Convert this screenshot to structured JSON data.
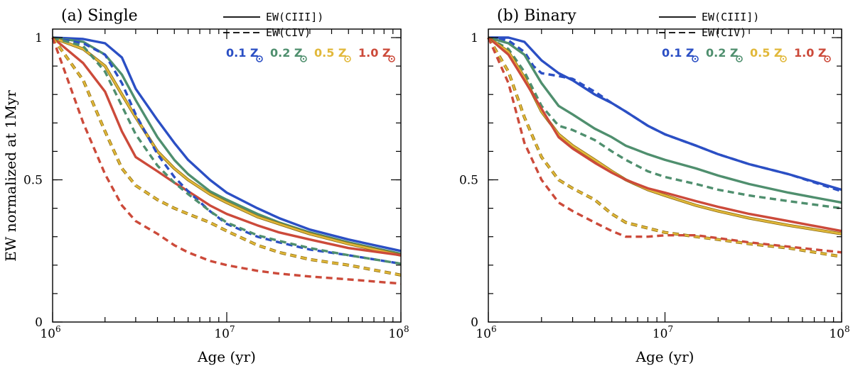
{
  "ylabel": "EW normalized at 1Myr",
  "colors": {
    "blue": "#2b4fc4",
    "green": "#4f8f6e",
    "yellow": "#e1b83a",
    "red": "#cc4a3a"
  },
  "chart_data": [
    {
      "type": "line",
      "title": "(a) Single",
      "xlabel": "Age (yr)",
      "ylabel": "EW normalized at 1Myr",
      "x_scale": "log",
      "xlim": [
        1000000,
        100000000
      ],
      "ylim": [
        0,
        1.03
      ],
      "x_ticks": [
        {
          "value": 1000000,
          "base": "10",
          "exp": "6"
        },
        {
          "value": 10000000,
          "base": "10",
          "exp": "7"
        },
        {
          "value": 100000000,
          "base": "10",
          "exp": "8"
        }
      ],
      "y_ticks": [
        {
          "value": 0,
          "label": "0"
        },
        {
          "value": 0.5,
          "label": "0.5"
        },
        {
          "value": 1,
          "label": "1"
        }
      ],
      "legend": {
        "position": "top-right",
        "line_entries": [
          {
            "style": "solid",
            "label": "EW(CIII])"
          },
          {
            "style": "dashed",
            "label": "EW(CIV)"
          }
        ],
        "metallicities": [
          {
            "label": "0.1 Z",
            "color": "blue"
          },
          {
            "label": "0.2 Z",
            "color": "green"
          },
          {
            "label": "0.5 Z",
            "color": "yellow"
          },
          {
            "label": "1.0 Z",
            "color": "red"
          }
        ]
      },
      "series": [
        {
          "name": "0.1 Z EW(CIII])",
          "color": "blue",
          "dash": false,
          "x": [
            1000000,
            1500000,
            2000000,
            2500000,
            3000000,
            4000000,
            5000000,
            6000000,
            8000000,
            10000000,
            15000000,
            20000000,
            30000000,
            50000000,
            100000000
          ],
          "y": [
            1.0,
            0.995,
            0.98,
            0.93,
            0.82,
            0.71,
            0.63,
            0.57,
            0.5,
            0.455,
            0.4,
            0.365,
            0.325,
            0.29,
            0.25
          ]
        },
        {
          "name": "0.2 Z EW(CIII])",
          "color": "green",
          "dash": false,
          "x": [
            1000000,
            1500000,
            2000000,
            2500000,
            3000000,
            4000000,
            5000000,
            6000000,
            8000000,
            10000000,
            15000000,
            20000000,
            30000000,
            50000000,
            100000000
          ],
          "y": [
            1.0,
            0.985,
            0.94,
            0.87,
            0.78,
            0.65,
            0.57,
            0.52,
            0.46,
            0.43,
            0.38,
            0.35,
            0.315,
            0.28,
            0.24
          ]
        },
        {
          "name": "0.5 Z EW(CIII])",
          "color": "yellow",
          "dash": false,
          "x": [
            1000000,
            1500000,
            2000000,
            2500000,
            3000000,
            4000000,
            5000000,
            6000000,
            8000000,
            10000000,
            15000000,
            20000000,
            30000000,
            50000000,
            100000000
          ],
          "y": [
            1.0,
            0.96,
            0.9,
            0.8,
            0.72,
            0.6,
            0.54,
            0.5,
            0.45,
            0.42,
            0.37,
            0.345,
            0.31,
            0.275,
            0.235
          ]
        },
        {
          "name": "1.0 Z EW(CIII])",
          "color": "red",
          "dash": false,
          "x": [
            1000000,
            1500000,
            2000000,
            2500000,
            3000000,
            4000000,
            5000000,
            6000000,
            8000000,
            10000000,
            15000000,
            20000000,
            30000000,
            50000000,
            100000000
          ],
          "y": [
            1.0,
            0.91,
            0.81,
            0.67,
            0.58,
            0.53,
            0.49,
            0.46,
            0.41,
            0.38,
            0.34,
            0.315,
            0.29,
            0.26,
            0.235
          ]
        },
        {
          "name": "0.1 Z EW(CIV)",
          "color": "blue",
          "dash": true,
          "x": [
            1000000,
            1500000,
            2000000,
            2500000,
            3000000,
            4000000,
            5000000,
            6000000,
            8000000,
            10000000,
            15000000,
            20000000,
            30000000,
            50000000,
            100000000
          ],
          "y": [
            1.0,
            0.98,
            0.94,
            0.84,
            0.73,
            0.59,
            0.51,
            0.46,
            0.39,
            0.345,
            0.3,
            0.28,
            0.255,
            0.235,
            0.205
          ]
        },
        {
          "name": "0.2 Z EW(CIV)",
          "color": "green",
          "dash": true,
          "x": [
            1000000,
            1500000,
            2000000,
            2500000,
            3000000,
            4000000,
            5000000,
            6000000,
            8000000,
            10000000,
            15000000,
            20000000,
            30000000,
            50000000,
            100000000
          ],
          "y": [
            1.0,
            0.97,
            0.88,
            0.76,
            0.66,
            0.55,
            0.49,
            0.45,
            0.39,
            0.35,
            0.305,
            0.285,
            0.26,
            0.235,
            0.205
          ]
        },
        {
          "name": "0.5 Z EW(CIV)",
          "color": "yellow",
          "dash": true,
          "x": [
            1000000,
            1500000,
            2000000,
            2500000,
            3000000,
            4000000,
            5000000,
            6000000,
            8000000,
            10000000,
            15000000,
            20000000,
            30000000,
            50000000,
            100000000
          ],
          "y": [
            1.0,
            0.85,
            0.67,
            0.54,
            0.48,
            0.43,
            0.4,
            0.38,
            0.35,
            0.32,
            0.27,
            0.245,
            0.22,
            0.2,
            0.165
          ]
        },
        {
          "name": "1.0 Z EW(CIV)",
          "color": "red",
          "dash": true,
          "x": [
            1000000,
            1500000,
            2000000,
            2500000,
            3000000,
            4000000,
            5000000,
            6000000,
            8000000,
            10000000,
            15000000,
            20000000,
            30000000,
            50000000,
            100000000
          ],
          "y": [
            1.0,
            0.7,
            0.52,
            0.41,
            0.355,
            0.31,
            0.27,
            0.245,
            0.215,
            0.2,
            0.18,
            0.17,
            0.16,
            0.15,
            0.135
          ]
        }
      ]
    },
    {
      "type": "line",
      "title": "(b) Binary",
      "xlabel": "Age (yr)",
      "ylabel": "",
      "x_scale": "log",
      "xlim": [
        1000000,
        100000000
      ],
      "ylim": [
        0,
        1.03
      ],
      "x_ticks": [
        {
          "value": 1000000,
          "base": "10",
          "exp": "6"
        },
        {
          "value": 10000000,
          "base": "10",
          "exp": "7"
        },
        {
          "value": 100000000,
          "base": "10",
          "exp": "8"
        }
      ],
      "y_ticks": [
        {
          "value": 0,
          "label": "0"
        },
        {
          "value": 0.5,
          "label": "0.5"
        },
        {
          "value": 1,
          "label": "1"
        }
      ],
      "legend": {
        "position": "top-right",
        "line_entries": [
          {
            "style": "solid",
            "label": "EW(CIII])"
          },
          {
            "style": "dashed",
            "label": "EW(CIV)"
          }
        ],
        "metallicities": [
          {
            "label": "0.1 Z",
            "color": "blue"
          },
          {
            "label": "0.2 Z",
            "color": "green"
          },
          {
            "label": "0.5 Z",
            "color": "yellow"
          },
          {
            "label": "1.0 Z",
            "color": "red"
          }
        ]
      },
      "series": [
        {
          "name": "0.1 Z EW(CIII])",
          "color": "blue",
          "dash": false,
          "x": [
            1000000,
            1300000,
            1600000,
            2000000,
            2500000,
            3000000,
            4000000,
            5000000,
            6000000,
            8000000,
            10000000,
            15000000,
            20000000,
            30000000,
            50000000,
            100000000
          ],
          "y": [
            1.0,
            1.0,
            0.985,
            0.92,
            0.875,
            0.85,
            0.8,
            0.77,
            0.74,
            0.69,
            0.66,
            0.62,
            0.59,
            0.555,
            0.52,
            0.465
          ]
        },
        {
          "name": "0.1 Z EW(CIV)",
          "color": "blue",
          "dash": true,
          "x": [
            1000000,
            1300000,
            1600000,
            1800000,
            2000000,
            2500000,
            3000000,
            4000000,
            5000000,
            6000000,
            8000000,
            10000000,
            15000000,
            20000000,
            30000000,
            50000000,
            100000000
          ],
          "y": [
            1.0,
            0.99,
            0.95,
            0.9,
            0.875,
            0.865,
            0.855,
            0.81,
            0.77,
            0.74,
            0.69,
            0.66,
            0.62,
            0.59,
            0.555,
            0.52,
            0.46
          ]
        },
        {
          "name": "0.2 Z EW(CIII])",
          "color": "green",
          "dash": false,
          "x": [
            1000000,
            1300000,
            1600000,
            2000000,
            2500000,
            3000000,
            4000000,
            5000000,
            6000000,
            8000000,
            10000000,
            15000000,
            20000000,
            30000000,
            50000000,
            100000000
          ],
          "y": [
            1.0,
            0.98,
            0.94,
            0.84,
            0.76,
            0.73,
            0.68,
            0.65,
            0.62,
            0.59,
            0.57,
            0.54,
            0.515,
            0.485,
            0.455,
            0.42
          ]
        },
        {
          "name": "0.2 Z EW(CIV)",
          "color": "green",
          "dash": true,
          "x": [
            1000000,
            1300000,
            1600000,
            2000000,
            2500000,
            3000000,
            4000000,
            5000000,
            6000000,
            8000000,
            10000000,
            15000000,
            20000000,
            30000000,
            50000000,
            100000000
          ],
          "y": [
            1.0,
            0.96,
            0.88,
            0.76,
            0.69,
            0.675,
            0.64,
            0.6,
            0.57,
            0.53,
            0.51,
            0.485,
            0.465,
            0.445,
            0.425,
            0.4
          ]
        },
        {
          "name": "0.5 Z EW(CIII])",
          "color": "yellow",
          "dash": false,
          "x": [
            1000000,
            1300000,
            1600000,
            2000000,
            2500000,
            3000000,
            4000000,
            5000000,
            6000000,
            8000000,
            10000000,
            15000000,
            20000000,
            30000000,
            50000000,
            100000000
          ],
          "y": [
            1.0,
            0.95,
            0.86,
            0.74,
            0.66,
            0.62,
            0.57,
            0.53,
            0.5,
            0.465,
            0.445,
            0.41,
            0.39,
            0.365,
            0.34,
            0.31
          ]
        },
        {
          "name": "1.0 Z EW(CIII])",
          "color": "red",
          "dash": false,
          "x": [
            1000000,
            1300000,
            1600000,
            2000000,
            2500000,
            3000000,
            4000000,
            5000000,
            6000000,
            8000000,
            10000000,
            15000000,
            20000000,
            30000000,
            50000000,
            100000000
          ],
          "y": [
            1.0,
            0.94,
            0.85,
            0.75,
            0.65,
            0.61,
            0.56,
            0.525,
            0.5,
            0.47,
            0.455,
            0.425,
            0.405,
            0.38,
            0.355,
            0.32
          ]
        },
        {
          "name": "0.5 Z EW(CIV)",
          "color": "yellow",
          "dash": true,
          "x": [
            1000000,
            1300000,
            1600000,
            2000000,
            2500000,
            3000000,
            4000000,
            5000000,
            6000000,
            8000000,
            10000000,
            15000000,
            20000000,
            30000000,
            50000000,
            100000000
          ],
          "y": [
            1.0,
            0.88,
            0.72,
            0.58,
            0.5,
            0.47,
            0.43,
            0.38,
            0.35,
            0.33,
            0.315,
            0.3,
            0.29,
            0.275,
            0.26,
            0.23
          ]
        },
        {
          "name": "1.0 Z EW(CIV)",
          "color": "red",
          "dash": true,
          "x": [
            1000000,
            1300000,
            1600000,
            2000000,
            2500000,
            3000000,
            4000000,
            5000000,
            6000000,
            8000000,
            10000000,
            15000000,
            20000000,
            30000000,
            50000000,
            100000000
          ],
          "y": [
            1.0,
            0.84,
            0.63,
            0.5,
            0.42,
            0.39,
            0.35,
            0.32,
            0.3,
            0.3,
            0.305,
            0.305,
            0.295,
            0.28,
            0.265,
            0.245
          ]
        }
      ]
    }
  ]
}
